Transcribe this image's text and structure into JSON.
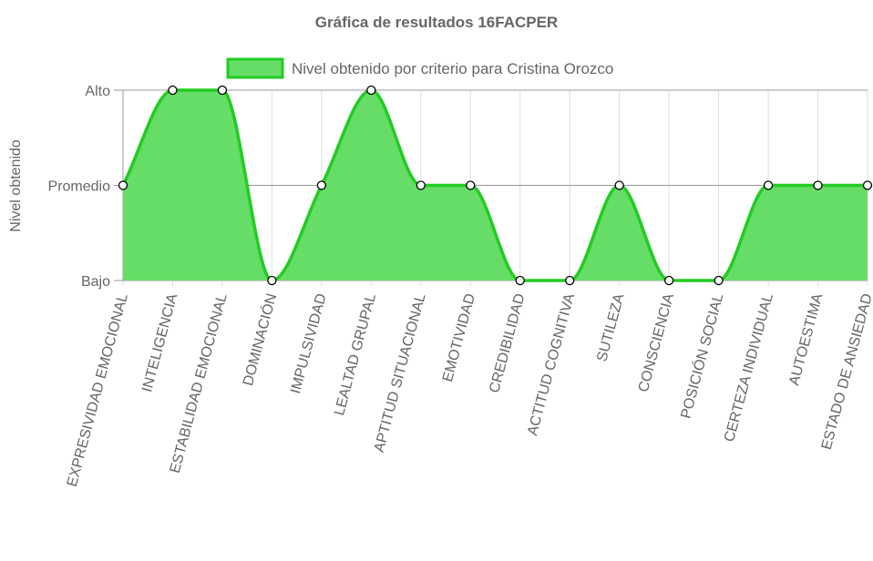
{
  "chart_data": {
    "type": "area",
    "title": "Gráfica de resultados 16FACPER",
    "ylabel": "Nivel obtenido",
    "xlabel": "",
    "y_levels": [
      "Bajo",
      "Promedio",
      "Alto"
    ],
    "categories": [
      "EXPRESIVIDAD EMOCIONAL",
      "INTELIGENCIA",
      "ESTABILIDAD EMOCIONAL",
      "DOMINACIÓN",
      "IMPULSIVIDAD",
      "LEALTAD GRUPAL",
      "APTITUD SITUACIONAL",
      "EMOTIVIDAD",
      "CREDIBILIDAD",
      "ACTITUD COGNITIVA",
      "SUTILEZA",
      "CONSCIENCIA",
      "POSICIÓN SOCIAL",
      "CERTEZA INDIVIDUAL",
      "AUTOESTIMA",
      "ESTADO DE ANSIEDAD"
    ],
    "series": [
      {
        "name": "Nivel obtenido por criterio para Cristina Orozco",
        "values": [
          "Promedio",
          "Alto",
          "Alto",
          "Bajo",
          "Promedio",
          "Alto",
          "Promedio",
          "Promedio",
          "Bajo",
          "Bajo",
          "Promedio",
          "Bajo",
          "Bajo",
          "Promedio",
          "Promedio",
          "Promedio"
        ]
      }
    ],
    "legend_position": "top",
    "grid": true,
    "colors": {
      "fill": "#66dd66",
      "line": "#22cc22",
      "grid": "#dddddd",
      "axis": "#999999",
      "text": "#666666"
    }
  }
}
